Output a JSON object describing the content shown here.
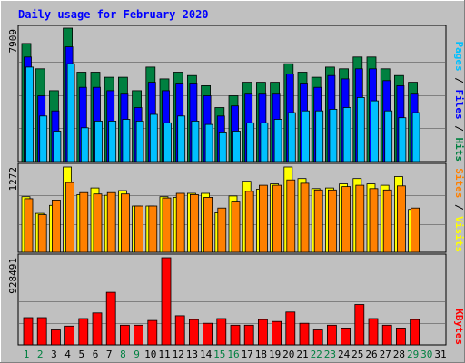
{
  "chart_data": {
    "type": "bar",
    "title": "Daily usage for February 2020",
    "categories": [
      "1",
      "2",
      "3",
      "4",
      "5",
      "6",
      "7",
      "8",
      "9",
      "10",
      "11",
      "12",
      "13",
      "14",
      "15",
      "16",
      "17",
      "18",
      "19",
      "20",
      "21",
      "22",
      "23",
      "24",
      "25",
      "26",
      "27",
      "28",
      "29",
      "30",
      "31"
    ],
    "weekend_days": [
      "1",
      "2",
      "8",
      "9",
      "15",
      "16",
      "22",
      "23",
      "29",
      "30"
    ],
    "panels": [
      {
        "id": "hits_files_pages",
        "max_label": "7909",
        "legend": [
          "Pages",
          "Files",
          "Hits"
        ],
        "series": [
          {
            "name": "Hits",
            "color": "#008040",
            "values": [
              7000,
              5500,
              4200,
              7909,
              5300,
              5300,
              5000,
              5000,
              4200,
              5600,
              4900,
              5300,
              5100,
              4500,
              3200,
              3900,
              4700,
              4700,
              4700,
              5800,
              5300,
              5000,
              5600,
              5500,
              6200,
              6200,
              5500,
              5100,
              4700,
              null,
              null
            ]
          },
          {
            "name": "Files",
            "color": "#0000ff",
            "values": [
              6200,
              3900,
              3000,
              6800,
              4400,
              4400,
              4200,
              4000,
              3200,
              4700,
              4200,
              4600,
              4600,
              3900,
              2700,
              3300,
              4000,
              4000,
              4000,
              5200,
              4600,
              4400,
              5100,
              4900,
              5500,
              5500,
              4800,
              4500,
              4000,
              null,
              null
            ]
          },
          {
            "name": "Pages",
            "color": "#00c0ff",
            "values": [
              5600,
              2700,
              1800,
              5800,
              2000,
              2400,
              2400,
              2500,
              2400,
              2800,
              2300,
              2700,
              2400,
              2200,
              1700,
              1800,
              2300,
              2300,
              2500,
              2900,
              3000,
              3000,
              3100,
              3200,
              3800,
              3600,
              3000,
              2600,
              2900,
              null,
              null
            ]
          }
        ]
      },
      {
        "id": "visits_sites",
        "max_label": "1272",
        "legend": [
          "Sites",
          "Visits"
        ],
        "series": [
          {
            "name": "Visits",
            "color": "#ffff00",
            "values": [
              830,
              580,
              700,
              1272,
              860,
              960,
              850,
              920,
              690,
              690,
              830,
              820,
              880,
              880,
              590,
              840,
              1060,
              940,
              1020,
              1272,
              1100,
              950,
              960,
              1020,
              1100,
              1020,
              1000,
              1130,
              640,
              null,
              null
            ]
          },
          {
            "name": "Sites",
            "color": "#ff8000",
            "values": [
              800,
              560,
              780,
              1040,
              890,
              870,
              890,
              870,
              690,
              690,
              810,
              880,
              860,
              820,
              660,
              750,
              910,
              1000,
              1000,
              1080,
              1030,
              930,
              930,
              980,
              1000,
              950,
              930,
              990,
              660,
              null,
              null
            ]
          }
        ]
      },
      {
        "id": "kbytes",
        "max_label": "928491",
        "legend": [
          "KBytes"
        ],
        "series": [
          {
            "name": "KBytes",
            "color": "#ff0000",
            "values": [
              290000,
              290000,
              160000,
              200000,
              280000,
              340000,
              560000,
              210000,
              210000,
              260000,
              928491,
              310000,
              270000,
              230000,
              280000,
              210000,
              210000,
              270000,
              250000,
              350000,
              230000,
              160000,
              210000,
              180000,
              430000,
              280000,
              210000,
              180000,
              270000,
              null,
              null
            ]
          }
        ]
      }
    ],
    "colors": {
      "background": "#c0c0c0",
      "title": "#0000ff",
      "weekday_label": "#000000",
      "weekend_label": "#008040",
      "hits": "#008040",
      "files": "#0000ff",
      "pages": "#00c0ff",
      "visits": "#ffff00",
      "sites": "#ff8000",
      "kbytes": "#ff0000"
    }
  }
}
